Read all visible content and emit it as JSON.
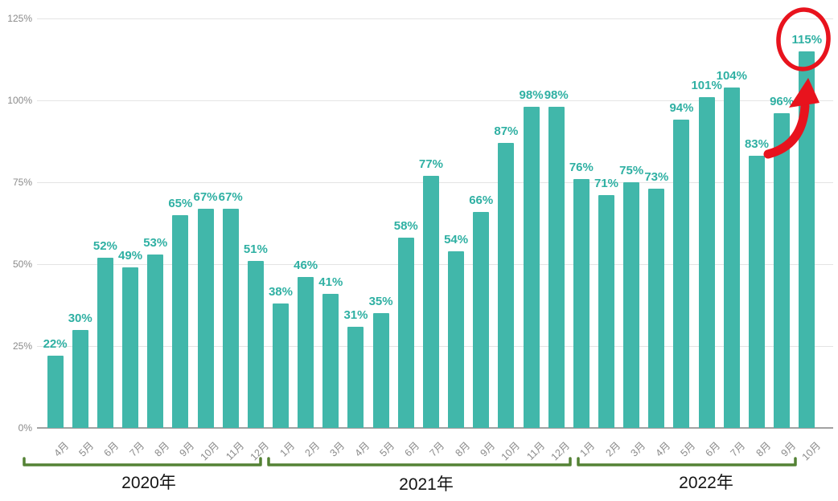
{
  "chart_data": {
    "type": "bar",
    "title": "",
    "unit": "%",
    "grid": "horizontal",
    "y_axis": {
      "min": 0,
      "max": 125,
      "tick_step": 25,
      "ticks": [
        "0%",
        "25%",
        "50%",
        "75%",
        "100%",
        "125%"
      ]
    },
    "groups": [
      {
        "year": "2020年",
        "months": [
          "4月",
          "5月",
          "6月",
          "7月",
          "8月",
          "9月",
          "10月",
          "11月",
          "12月"
        ],
        "values": [
          22,
          30,
          52,
          49,
          53,
          65,
          67,
          67,
          51
        ]
      },
      {
        "year": "2021年",
        "months": [
          "1月",
          "2月",
          "3月",
          "4月",
          "5月",
          "6月",
          "7月",
          "8月",
          "9月",
          "10月",
          "11月",
          "12月"
        ],
        "values": [
          38,
          46,
          41,
          31,
          35,
          58,
          77,
          54,
          66,
          87,
          98,
          98
        ]
      },
      {
        "year": "2022年",
        "months": [
          "1月",
          "2月",
          "3月",
          "4月",
          "5月",
          "6月",
          "7月",
          "8月",
          "9月",
          "10月"
        ],
        "values": [
          76,
          71,
          75,
          73,
          94,
          101,
          104,
          83,
          96,
          115
        ]
      }
    ],
    "highlight": {
      "year": "2022年",
      "month": "10月",
      "value": 115,
      "label": "115%",
      "annotation": "red ellipse around 115% label with red curved arrow pointing up to the bar"
    }
  },
  "colors": {
    "bar": "#41b7aa",
    "value_label": "#2fb0a3",
    "gridline": "#e4e4e4",
    "baseline": "#a2a2a2",
    "axis_text": "#8a8a8a",
    "bracket_green": "#548235",
    "year_text": "#141414",
    "highlight_red": "#e8131d",
    "background": "#ffffff"
  }
}
